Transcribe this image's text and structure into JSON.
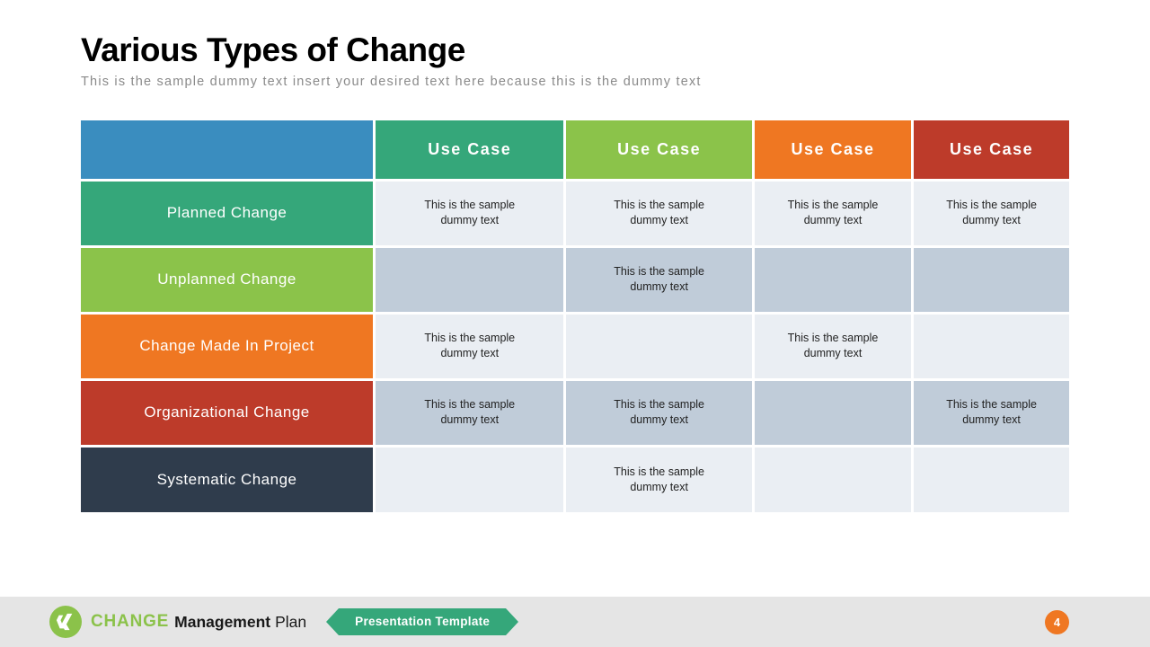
{
  "header": {
    "title": "Various Types of Change",
    "subtitle": "This is the sample dummy  text insert your desired text here because this is the dummy  text",
    "title_color": "#000000",
    "subtitle_color": "#8a8a8a"
  },
  "table": {
    "header_bg_corner": "#3a8dbf",
    "col_headers": [
      {
        "label": "Use Case",
        "bg": "#35a77a"
      },
      {
        "label": "Use Case",
        "bg": "#8bc34a"
      },
      {
        "label": "Use Case",
        "bg": "#ef7722"
      },
      {
        "label": "Use Case",
        "bg": "#bd3b2a"
      }
    ],
    "row_headers": [
      {
        "label": "Planned Change",
        "bg": "#35a77a"
      },
      {
        "label": "Unplanned Change",
        "bg": "#8bc34a"
      },
      {
        "label": "Change Made In Project",
        "bg": "#ef7722"
      },
      {
        "label": "Organizational Change",
        "bg": "#bd3b2a"
      },
      {
        "label": "Systematic Change",
        "bg": "#2f3c4c"
      }
    ],
    "band_colors": {
      "light": "#eaeef3",
      "dark": "#c0ccd9"
    },
    "cell_text": "This is the sample\ndummy text",
    "cells": [
      [
        true,
        true,
        true,
        true
      ],
      [
        false,
        true,
        false,
        false
      ],
      [
        true,
        false,
        true,
        false
      ],
      [
        true,
        true,
        false,
        true
      ],
      [
        false,
        true,
        false,
        false
      ]
    ],
    "border_color": "#ffffff",
    "border_width": 3
  },
  "footer": {
    "bg": "#e5e5e5",
    "logo_bg": "#8bc24a",
    "logo_fg": "#ffffff",
    "brand_accent": "CHANGE",
    "brand_accent_color": "#8bc24a",
    "brand_bold": "Management",
    "brand_light": "Plan",
    "ribbon_text": "Presentation Template",
    "ribbon_bg": "#35a77a",
    "page_number": "4",
    "page_bg": "#ef7722"
  }
}
